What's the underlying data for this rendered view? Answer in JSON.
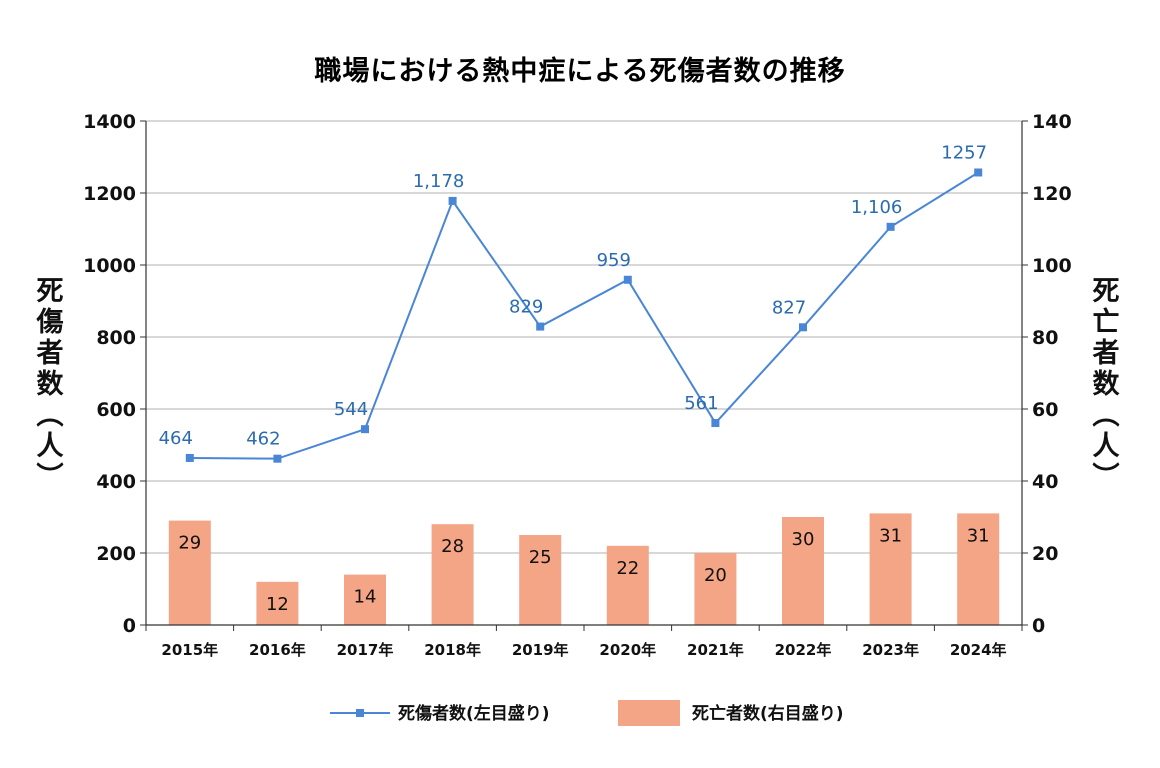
{
  "chart_data": {
    "type": "bar",
    "title": "職場における熱中症による死傷者数の推移",
    "categories": [
      "2015年",
      "2016年",
      "2017年",
      "2018年",
      "2019年",
      "2020年",
      "2021年",
      "2022年",
      "2023年",
      "2024年"
    ],
    "series": [
      {
        "name": "死傷者数(左目盛り)",
        "type": "line",
        "axis": "left",
        "values": [
          464,
          462,
          544,
          1178,
          829,
          959,
          561,
          827,
          1106,
          1257
        ],
        "labels": [
          "464",
          "462",
          "544",
          "1,178",
          "829",
          "959",
          "561",
          "827",
          "1,106",
          "1257"
        ],
        "color": "#4a86d6"
      },
      {
        "name": "死亡者数(右目盛り)",
        "type": "bar",
        "axis": "right",
        "values": [
          29,
          12,
          14,
          28,
          25,
          22,
          20,
          30,
          31,
          31
        ],
        "labels": [
          "29",
          "12",
          "14",
          "28",
          "25",
          "22",
          "20",
          "30",
          "31",
          "31"
        ],
        "color": "#f4a585"
      }
    ],
    "ylabel_left": "死傷者数(人)",
    "ylabel_right": "死亡者数(人)",
    "ylim_left": [
      0,
      1400
    ],
    "ylim_right": [
      0,
      140
    ],
    "yticks_left": [
      "0",
      "200",
      "400",
      "600",
      "800",
      "1000",
      "1200",
      "1400"
    ],
    "yticks_right": [
      "0",
      "20",
      "40",
      "60",
      "80",
      "100",
      "120",
      "140"
    ],
    "grid": true,
    "legend_position": "bottom"
  }
}
